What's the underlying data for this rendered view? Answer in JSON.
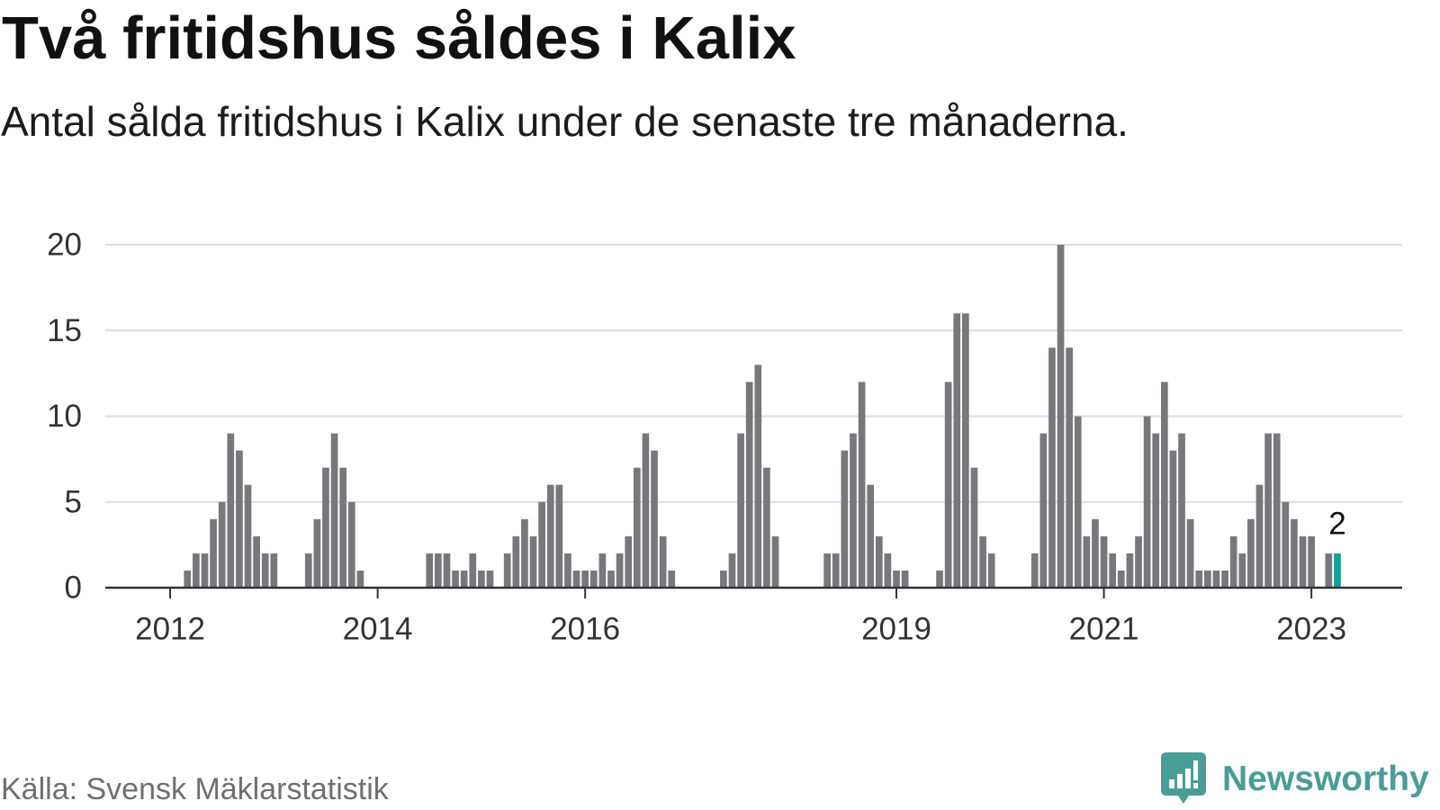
{
  "chart_data": {
    "type": "bar",
    "title": "Två fritidshus såldes i Kalix",
    "subtitle": "Antal sålda fritidshus i Kalix under de senaste tre månaderna.",
    "x": [
      "2012-01",
      "2012-02",
      "2012-03",
      "2012-04",
      "2012-05",
      "2012-06",
      "2012-07",
      "2012-08",
      "2012-09",
      "2012-10",
      "2012-11",
      "2012-12",
      "2013-01",
      "2013-02",
      "2013-03",
      "2013-04",
      "2013-05",
      "2013-06",
      "2013-07",
      "2013-08",
      "2013-09",
      "2013-10",
      "2013-11",
      "2013-12",
      "2014-01",
      "2014-02",
      "2014-03",
      "2014-04",
      "2014-05",
      "2014-06",
      "2014-07",
      "2014-08",
      "2014-09",
      "2014-10",
      "2014-11",
      "2014-12",
      "2015-01",
      "2015-02",
      "2015-03",
      "2015-04",
      "2015-05",
      "2015-06",
      "2015-07",
      "2015-08",
      "2015-09",
      "2015-10",
      "2015-11",
      "2015-12",
      "2016-01",
      "2016-02",
      "2016-03",
      "2016-04",
      "2016-05",
      "2016-06",
      "2016-07",
      "2016-08",
      "2016-09",
      "2016-10",
      "2016-11",
      "2016-12",
      "2017-01",
      "2017-02",
      "2017-03",
      "2017-04",
      "2017-05",
      "2017-06",
      "2017-07",
      "2017-08",
      "2017-09",
      "2017-10",
      "2017-11",
      "2017-12",
      "2018-01",
      "2018-02",
      "2018-03",
      "2018-04",
      "2018-05",
      "2018-06",
      "2018-07",
      "2018-08",
      "2018-09",
      "2018-10",
      "2018-11",
      "2018-12",
      "2019-01",
      "2019-02",
      "2019-03",
      "2019-04",
      "2019-05",
      "2019-06",
      "2019-07",
      "2019-08",
      "2019-09",
      "2019-10",
      "2019-11",
      "2019-12",
      "2020-01",
      "2020-02",
      "2020-03",
      "2020-04",
      "2020-05",
      "2020-06",
      "2020-07",
      "2020-08",
      "2020-09",
      "2020-10",
      "2020-11",
      "2020-12",
      "2021-01",
      "2021-02",
      "2021-03",
      "2021-04",
      "2021-05",
      "2021-06",
      "2021-07",
      "2021-08",
      "2021-09",
      "2021-10",
      "2021-11",
      "2021-12",
      "2022-01",
      "2022-02",
      "2022-03",
      "2022-04",
      "2022-05",
      "2022-06",
      "2022-07",
      "2022-08",
      "2022-09",
      "2022-10",
      "2022-11",
      "2022-12",
      "2023-01",
      "2023-02",
      "2023-03",
      "2023-04"
    ],
    "values": [
      0,
      0,
      1,
      2,
      2,
      4,
      5,
      9,
      8,
      6,
      3,
      2,
      2,
      0,
      0,
      0,
      2,
      4,
      7,
      9,
      7,
      5,
      1,
      0,
      0,
      0,
      0,
      0,
      0,
      0,
      2,
      2,
      2,
      1,
      1,
      2,
      1,
      1,
      0,
      2,
      3,
      4,
      3,
      5,
      6,
      6,
      2,
      1,
      1,
      1,
      2,
      1,
      2,
      3,
      7,
      9,
      8,
      3,
      1,
      0,
      0,
      0,
      0,
      0,
      1,
      2,
      9,
      12,
      13,
      7,
      3,
      0,
      0,
      0,
      0,
      0,
      2,
      2,
      8,
      9,
      12,
      6,
      3,
      2,
      1,
      1,
      0,
      0,
      0,
      1,
      12,
      16,
      16,
      7,
      3,
      2,
      0,
      0,
      0,
      0,
      2,
      9,
      14,
      20,
      14,
      10,
      3,
      4,
      3,
      2,
      1,
      2,
      3,
      10,
      9,
      12,
      8,
      9,
      4,
      1,
      1,
      1,
      1,
      3,
      2,
      4,
      6,
      9,
      9,
      5,
      4,
      3,
      3,
      0,
      2,
      2
    ],
    "xlim": [
      "2011-06",
      "2023-11"
    ],
    "ylim": [
      0,
      20
    ],
    "xticks": [
      "2012",
      "2014",
      "2016",
      "2019",
      "2021",
      "2023"
    ],
    "yticks": [
      0,
      5,
      10,
      15,
      20
    ],
    "highlight_x": "2023-04",
    "data_labels": [
      {
        "x": "2023-04",
        "label": "2"
      }
    ],
    "grid": "horizontal",
    "colors": {
      "bar": "#78777c",
      "highlight": "#14a096",
      "grid": "#dddddd",
      "axis": "#333333"
    }
  },
  "footer": {
    "source": "Källa: Svensk Mäklarstatistik",
    "brand": "Newsworthy",
    "brand_color": "#4a9d96",
    "brand_icon": "newsworthy-logo-icon"
  }
}
